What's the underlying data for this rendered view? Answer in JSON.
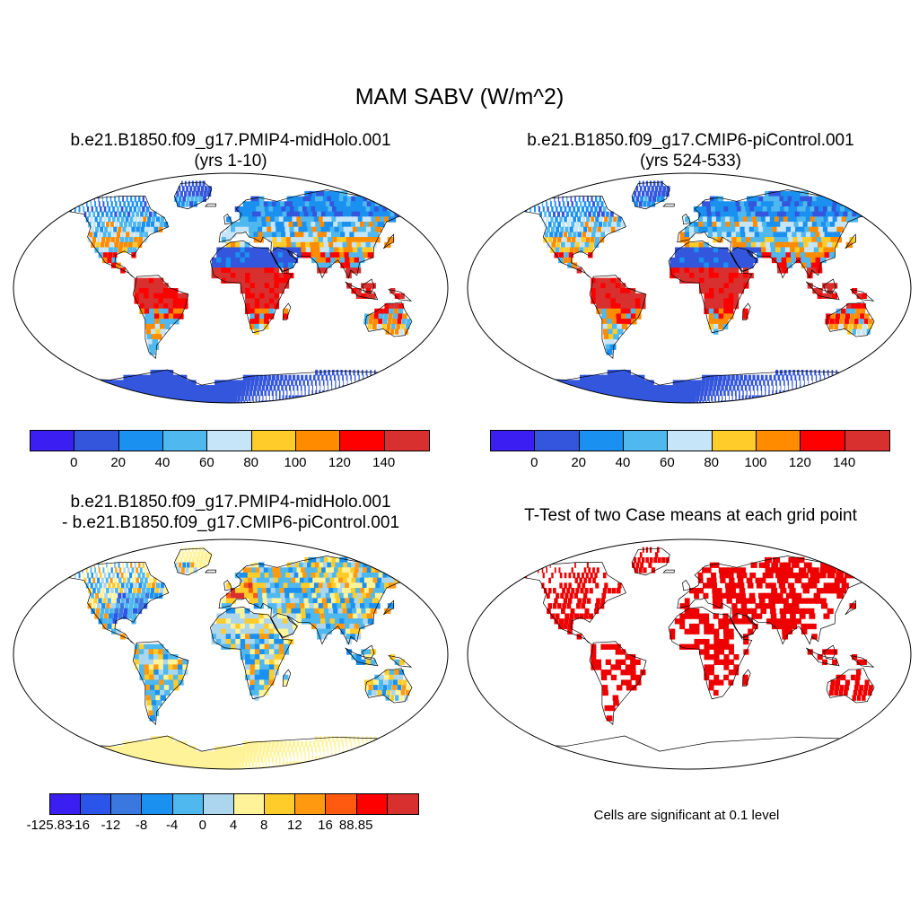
{
  "title": "MAM SABV (W/m^2)",
  "panels": [
    {
      "title_line1": "b.e21.B1850.f09_g17.PMIP4-midHolo.001",
      "title_line2": "(yrs 1-10)"
    },
    {
      "title_line1": "b.e21.B1850.f09_g17.CMIP6-piControl.001",
      "title_line2": "(yrs 524-533)"
    },
    {
      "title_line1": "b.e21.B1850.f09_g17.PMIP4-midHolo.001",
      "title_line2": "- b.e21.B1850.f09_g17.CMIP6-piControl.001"
    },
    {
      "title_line1": "T-Test of two Case means at each grid point"
    }
  ],
  "colorbar_main": {
    "colors": [
      "#3b1ff2",
      "#3356dc",
      "#1a90f0",
      "#4fb8ee",
      "#c6e5f8",
      "#ffcc2a",
      "#ff8c00",
      "#ff0000",
      "#d7302e"
    ],
    "ticks": [
      "0",
      "20",
      "40",
      "60",
      "80",
      "100",
      "120",
      "140"
    ]
  },
  "colorbar_diff": {
    "colors": [
      "#3b1ff2",
      "#2a55e8",
      "#3a78e0",
      "#1a90f0",
      "#4fb8ee",
      "#acd6ee",
      "#fff39a",
      "#ffcc2a",
      "#ff9a10",
      "#ff5a10",
      "#ff0000",
      "#d7302e"
    ],
    "ticks": [
      "-125.83",
      "-16",
      "-12",
      "-8",
      "-4",
      "0",
      "4",
      "8",
      "12",
      "16",
      "88.85"
    ]
  },
  "ttest_note": "Cells are significant at 0.1 level",
  "colors": {
    "land": "#f5f5f5",
    "ocean": "#ffffff",
    "significant": "#ee0000",
    "outline": "#000000"
  }
}
